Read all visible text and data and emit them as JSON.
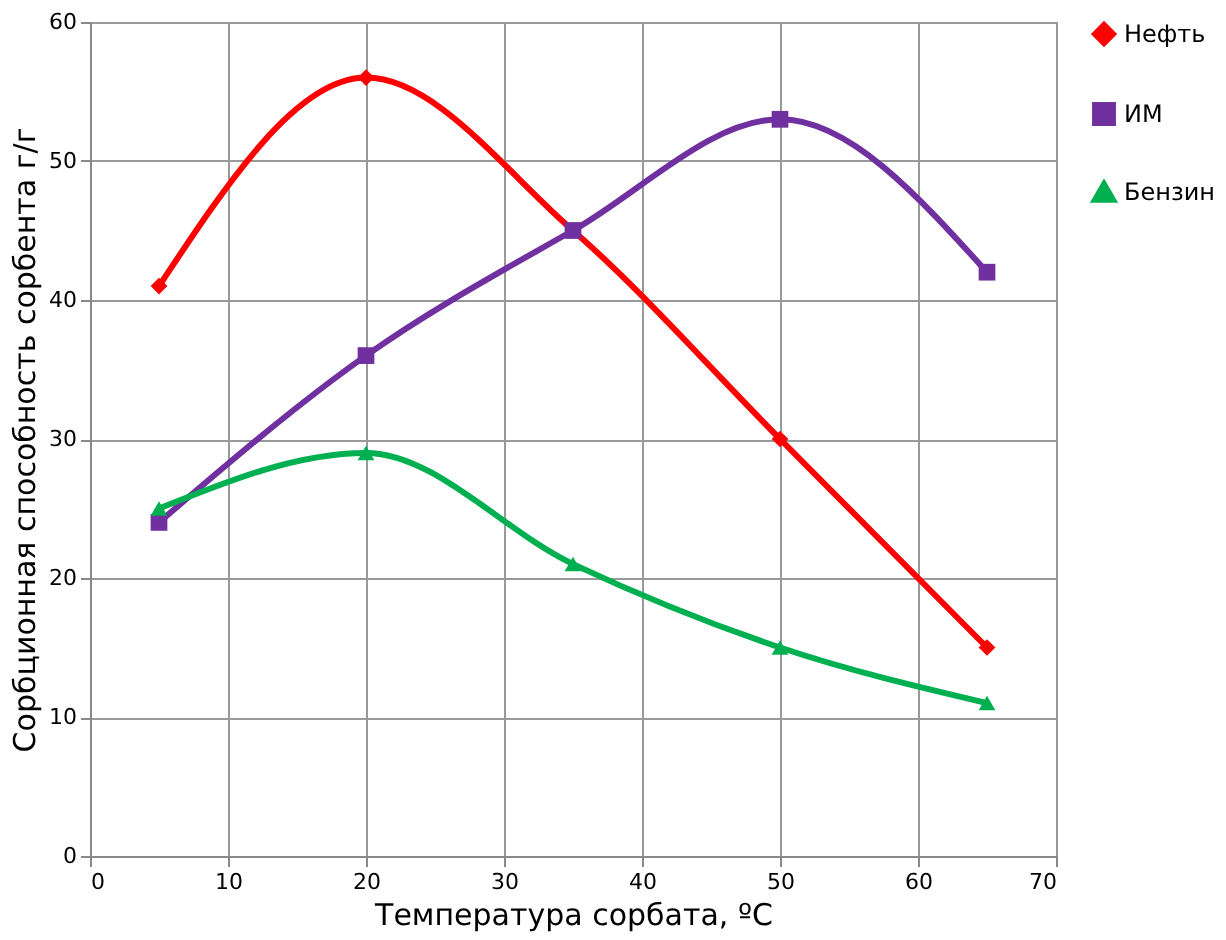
{
  "chart_data": {
    "type": "line",
    "xlabel": "Температура сорбата, ºС",
    "ylabel": "Сорбционная способность сорбента г/г",
    "x": [
      5,
      20,
      35,
      50,
      65
    ],
    "series": [
      {
        "name": "Нефть",
        "color": "#ff0000",
        "marker": "diamond",
        "values": [
          41,
          56,
          45,
          30,
          15
        ]
      },
      {
        "name": "ИМ",
        "color": "#7030a0",
        "marker": "square",
        "values": [
          24,
          36,
          45,
          53,
          42
        ]
      },
      {
        "name": "Бензин",
        "color": "#00b050",
        "marker": "triangle",
        "values": [
          25,
          29,
          21,
          15,
          11
        ]
      }
    ],
    "xlim": [
      0,
      70
    ],
    "xticks": [
      0,
      10,
      20,
      30,
      40,
      50,
      60,
      70
    ],
    "ylim": [
      0,
      60
    ],
    "yticks": [
      0,
      10,
      20,
      30,
      40,
      50,
      60
    ],
    "grid": true,
    "legend": "top right",
    "line_style": "solid"
  }
}
